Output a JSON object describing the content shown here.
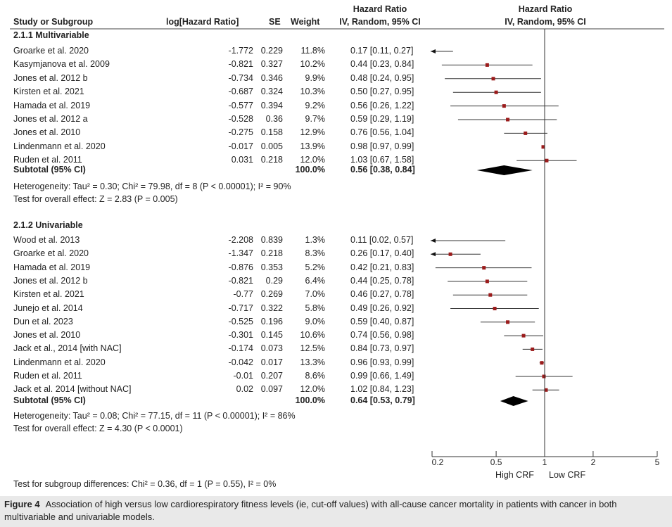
{
  "header": {
    "col_study": "Study or Subgroup",
    "col_loghr": "log[Hazard Ratio]",
    "col_se": "SE",
    "col_weight": "Weight",
    "col_hr_line1": "Hazard Ratio",
    "col_hr_line2": "IV, Random, 95% CI",
    "plot_hr_line1": "Hazard Ratio",
    "plot_hr_line2": "IV, Random, 95% CI"
  },
  "chart_data": {
    "type": "forest",
    "x_scale": "log",
    "x_ticks": [
      "0.2",
      "0.5",
      "1",
      "2",
      "5"
    ],
    "x_range": [
      0.2,
      5
    ],
    "reference_line": 1,
    "favours_left": "High CRF",
    "favours_right": "Low CRF",
    "groups": [
      {
        "title": "2.1.1 Multivariable",
        "studies": [
          {
            "name": "Groarke et al. 2020",
            "loghr": "-1.772",
            "se": "0.229",
            "weight": "11.8%",
            "ci_text": "0.17 [0.11, 0.27]",
            "hr": 0.17,
            "lo": 0.11,
            "hi": 0.27
          },
          {
            "name": "Kasymjanova et al. 2009",
            "loghr": "-0.821",
            "se": "0.327",
            "weight": "10.2%",
            "ci_text": "0.44 [0.23, 0.84]",
            "hr": 0.44,
            "lo": 0.23,
            "hi": 0.84
          },
          {
            "name": "Jones et al. 2012 b",
            "loghr": "-0.734",
            "se": "0.346",
            "weight": "9.9%",
            "ci_text": "0.48 [0.24, 0.95]",
            "hr": 0.48,
            "lo": 0.24,
            "hi": 0.95
          },
          {
            "name": "Kirsten et al. 2021",
            "loghr": "-0.687",
            "se": "0.324",
            "weight": "10.3%",
            "ci_text": "0.50 [0.27, 0.95]",
            "hr": 0.5,
            "lo": 0.27,
            "hi": 0.95
          },
          {
            "name": "Hamada et al. 2019",
            "loghr": "-0.577",
            "se": "0.394",
            "weight": "9.2%",
            "ci_text": "0.56 [0.26, 1.22]",
            "hr": 0.56,
            "lo": 0.26,
            "hi": 1.22
          },
          {
            "name": "Jones et al. 2012 a",
            "loghr": "-0.528",
            "se": "0.36",
            "weight": "9.7%",
            "ci_text": "0.59 [0.29, 1.19]",
            "hr": 0.59,
            "lo": 0.29,
            "hi": 1.19
          },
          {
            "name": "Jones et al. 2010",
            "loghr": "-0.275",
            "se": "0.158",
            "weight": "12.9%",
            "ci_text": "0.76 [0.56, 1.04]",
            "hr": 0.76,
            "lo": 0.56,
            "hi": 1.04
          },
          {
            "name": "Lindenmann et al. 2020",
            "loghr": "-0.017",
            "se": "0.005",
            "weight": "13.9%",
            "ci_text": "0.98 [0.97, 0.99]",
            "hr": 0.98,
            "lo": 0.97,
            "hi": 0.99
          },
          {
            "name": "Ruden et al. 2011",
            "loghr": "0.031",
            "se": "0.218",
            "weight": "12.0%",
            "ci_text": "1.03 [0.67, 1.58]",
            "hr": 1.03,
            "lo": 0.67,
            "hi": 1.58
          }
        ],
        "subtotal": {
          "label": "Subtotal (95% CI)",
          "weight": "100.0%",
          "ci_text": "0.56 [0.38, 0.84]",
          "hr": 0.56,
          "lo": 0.38,
          "hi": 0.84
        },
        "heterogeneity": "Heterogeneity: Tau² = 0.30; Chi² = 79.98, df = 8 (P < 0.00001); I² = 90%",
        "overall": "Test for overall effect: Z = 2.83 (P = 0.005)"
      },
      {
        "title": "2.1.2 Univariable",
        "studies": [
          {
            "name": "Wood et al. 2013",
            "loghr": "-2.208",
            "se": "0.839",
            "weight": "1.3%",
            "ci_text": "0.11 [0.02, 0.57]",
            "hr": 0.11,
            "lo": 0.02,
            "hi": 0.57
          },
          {
            "name": "Groarke et al. 2020",
            "loghr": "-1.347",
            "se": "0.218",
            "weight": "8.3%",
            "ci_text": "0.26 [0.17, 0.40]",
            "hr": 0.26,
            "lo": 0.17,
            "hi": 0.4
          },
          {
            "name": "Hamada et al. 2019",
            "loghr": "-0.876",
            "se": "0.353",
            "weight": "5.2%",
            "ci_text": "0.42 [0.21, 0.83]",
            "hr": 0.42,
            "lo": 0.21,
            "hi": 0.83
          },
          {
            "name": "Jones et al. 2012 b",
            "loghr": "-0.821",
            "se": "0.29",
            "weight": "6.4%",
            "ci_text": "0.44 [0.25, 0.78]",
            "hr": 0.44,
            "lo": 0.25,
            "hi": 0.78
          },
          {
            "name": "Kirsten et al. 2021",
            "loghr": "-0.77",
            "se": "0.269",
            "weight": "7.0%",
            "ci_text": "0.46 [0.27, 0.78]",
            "hr": 0.46,
            "lo": 0.27,
            "hi": 0.78
          },
          {
            "name": "Junejo et al. 2014",
            "loghr": "-0.717",
            "se": "0.322",
            "weight": "5.8%",
            "ci_text": "0.49 [0.26, 0.92]",
            "hr": 0.49,
            "lo": 0.26,
            "hi": 0.92
          },
          {
            "name": "Dun et al. 2023",
            "loghr": "-0.525",
            "se": "0.196",
            "weight": "9.0%",
            "ci_text": "0.59 [0.40, 0.87]",
            "hr": 0.59,
            "lo": 0.4,
            "hi": 0.87
          },
          {
            "name": "Jones et al. 2010",
            "loghr": "-0.301",
            "se": "0.145",
            "weight": "10.6%",
            "ci_text": "0.74 [0.56, 0.98]",
            "hr": 0.74,
            "lo": 0.56,
            "hi": 0.98
          },
          {
            "name": "Jack et al., 2014 [with NAC]",
            "loghr": "-0.174",
            "se": "0.073",
            "weight": "12.5%",
            "ci_text": "0.84 [0.73, 0.97]",
            "hr": 0.84,
            "lo": 0.73,
            "hi": 0.97
          },
          {
            "name": "Lindenmann et al. 2020",
            "loghr": "-0.042",
            "se": "0.017",
            "weight": "13.3%",
            "ci_text": "0.96 [0.93, 0.99]",
            "hr": 0.96,
            "lo": 0.93,
            "hi": 0.99
          },
          {
            "name": "Ruden et al. 2011",
            "loghr": "-0.01",
            "se": "0.207",
            "weight": "8.6%",
            "ci_text": "0.99 [0.66, 1.49]",
            "hr": 0.99,
            "lo": 0.66,
            "hi": 1.49
          },
          {
            "name": "Jack et al. 2014 [without NAC]",
            "loghr": "0.02",
            "se": "0.097",
            "weight": "12.0%",
            "ci_text": "1.02 [0.84, 1.23]",
            "hr": 1.02,
            "lo": 0.84,
            "hi": 1.23
          }
        ],
        "subtotal": {
          "label": "Subtotal (95% CI)",
          "weight": "100.0%",
          "ci_text": "0.64 [0.53, 0.79]",
          "hr": 0.64,
          "lo": 0.53,
          "hi": 0.79
        },
        "heterogeneity": "Heterogeneity: Tau² = 0.08; Chi² = 77.15, df = 11 (P < 0.00001); I² = 86%",
        "overall": "Test for overall effect: Z = 4.30 (P < 0.0001)"
      }
    ],
    "subgroup_test": "Test for subgroup differences: Chi² = 0.36, df = 1 (P = 0.55), I² = 0%"
  },
  "caption": {
    "figure_label": "Figure 4",
    "text": "Association of high versus low cardiorespiratory fitness levels (ie, cut-off values) with all-cause cancer mortality in patients with cancer in both multivariable and univariable models."
  }
}
